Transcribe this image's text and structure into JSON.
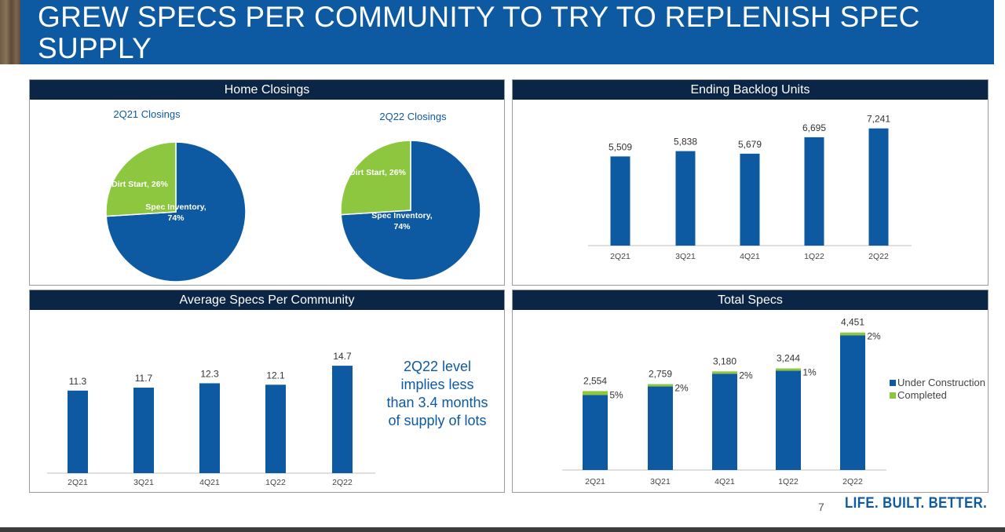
{
  "slide": {
    "title": "GREW SPECS PER COMMUNITY TO TRY TO REPLENISH SPEC SUPPLY",
    "page_number": "7",
    "brand": "LIFE. BUILT. BETTER."
  },
  "note": "2Q22 level implies less than 3.4 months of supply of lots",
  "colors": {
    "blue": "#0e5aa2",
    "green": "#8dc63f",
    "header": "#0b2547"
  },
  "chart_data": [
    {
      "type": "pie",
      "title": "Home Closings",
      "charts": [
        {
          "subtitle": "2Q21 Closings",
          "slices": [
            {
              "label": "Spec Inventory, 74%",
              "value": 74,
              "color": "#0e5aa2"
            },
            {
              "label": "Dirt Start, 26%",
              "value": 26,
              "color": "#8dc63f"
            }
          ]
        },
        {
          "subtitle": "2Q22 Closings",
          "slices": [
            {
              "label": "Spec Inventory, 74%",
              "value": 74,
              "color": "#0e5aa2"
            },
            {
              "label": "Dirt Start, 26%",
              "value": 26,
              "color": "#8dc63f"
            }
          ]
        }
      ]
    },
    {
      "type": "bar",
      "title": "Ending Backlog Units",
      "categories": [
        "2Q21",
        "3Q21",
        "4Q21",
        "1Q22",
        "2Q22"
      ],
      "values": [
        5509,
        5838,
        5679,
        6695,
        7241
      ],
      "value_labels": [
        "5,509",
        "5,838",
        "5,679",
        "6,695",
        "7,241"
      ],
      "ylim": [
        0,
        8000
      ],
      "grid": false
    },
    {
      "type": "bar",
      "title": "Average Specs Per Community",
      "categories": [
        "2Q21",
        "3Q21",
        "4Q21",
        "1Q22",
        "2Q22"
      ],
      "values": [
        11.3,
        11.7,
        12.3,
        12.1,
        14.7
      ],
      "value_labels": [
        "11.3",
        "11.7",
        "12.3",
        "12.1",
        "14.7"
      ],
      "ylim": [
        0,
        16
      ],
      "grid": false
    },
    {
      "type": "bar",
      "stacked": true,
      "title": "Total Specs",
      "categories": [
        "2Q21",
        "3Q21",
        "4Q21",
        "1Q22",
        "2Q22"
      ],
      "totals": [
        "2,554",
        "2,759",
        "3,180",
        "3,244",
        "4,451"
      ],
      "completed_pct_labels": [
        "5%",
        "2%",
        "2%",
        "1%",
        "2%"
      ],
      "series": [
        {
          "name": "Under Construction",
          "values": [
            2426,
            2704,
            3116,
            3212,
            4362
          ],
          "color": "#0e5aa2"
        },
        {
          "name": "Completed",
          "values": [
            128,
            55,
            64,
            32,
            89
          ],
          "color": "#8dc63f"
        }
      ],
      "ylim": [
        0,
        4800
      ],
      "legend": "right",
      "grid": false
    }
  ]
}
